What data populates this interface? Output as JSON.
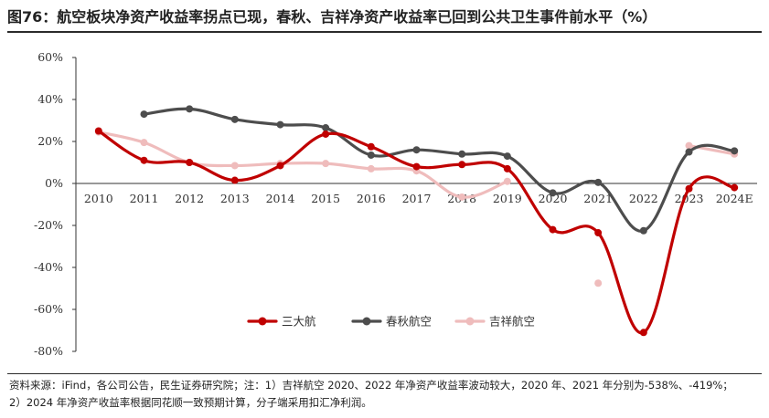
{
  "title": "图76：航空板块净资产收益率拐点已现，春秋、吉祥净资产收益率已回到公共卫生事件前水平（%）",
  "notes": {
    "line1": "资料来源：iFind，各公司公告，民生证券研究院；注：1）吉祥航空 2020、2022 年净资产收益率波动较大，2020 年、2021 年分别为-538%、-419%；",
    "line2": "2）2024 年净资产收益率根据同花顺一致预期计算，分子端采用扣汇净利润。"
  },
  "chart_data": {
    "type": "line",
    "categories": [
      "2010",
      "2011",
      "2012",
      "2013",
      "2014",
      "2015",
      "2016",
      "2017",
      "2018",
      "2019",
      "2020",
      "2021",
      "2022",
      "2023",
      "2024E"
    ],
    "y_ticks": [
      "60%",
      "40%",
      "20%",
      "0%",
      "-20%",
      "-40%",
      "-60%",
      "-80%"
    ],
    "y_tick_values": [
      60,
      40,
      20,
      0,
      -20,
      -40,
      -60,
      -80
    ],
    "ylim": [
      -80,
      60
    ],
    "legend_position": "bottom-center",
    "series": [
      {
        "name": "三大航",
        "color": "#c00000",
        "values": [
          25,
          11,
          10,
          1.5,
          8.5,
          23.5,
          17.5,
          8,
          9,
          7,
          -22,
          -23.5,
          -71,
          -2.5,
          -2
        ]
      },
      {
        "name": "春秋航空",
        "color": "#4d4d4d",
        "values": [
          null,
          33,
          35.5,
          30.5,
          28,
          26.5,
          13.5,
          16,
          14,
          13,
          -4.5,
          0.5,
          -22.5,
          15,
          15.5
        ]
      },
      {
        "name": "吉祥航空",
        "color": "#efbcbc",
        "values": [
          24.5,
          19.5,
          10,
          8.5,
          9.5,
          9.5,
          7,
          6,
          -6.5,
          1,
          null,
          -47.5,
          null,
          18,
          14
        ]
      }
    ]
  }
}
